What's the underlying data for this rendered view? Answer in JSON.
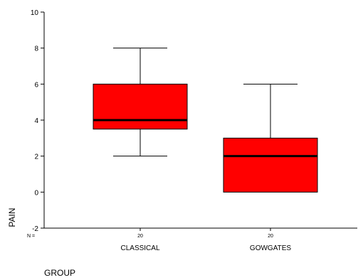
{
  "chart_data": {
    "type": "boxplot",
    "xlabel": "GROUP",
    "ylabel": "PAIN",
    "ylim": [
      -2,
      10
    ],
    "yticks": [
      -2,
      0,
      2,
      4,
      6,
      8,
      10
    ],
    "n_label": "N =",
    "grid": false,
    "categories": [
      "CLASSICAL",
      "GOWGATES"
    ],
    "n": [
      "20",
      "20"
    ],
    "boxes": [
      {
        "category": "CLASSICAL",
        "min": 2,
        "q1": 3.5,
        "median": 4,
        "q3": 6,
        "max": 8
      },
      {
        "category": "GOWGATES",
        "min": 0,
        "q1": 0,
        "median": 2,
        "q3": 3,
        "max": 6
      }
    ],
    "box_color": "#ff0000"
  }
}
